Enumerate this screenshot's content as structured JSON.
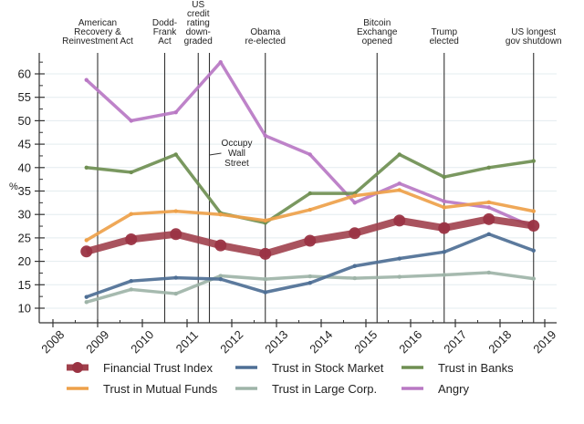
{
  "chart_data": {
    "type": "line",
    "title": "",
    "xlabel": "",
    "ylabel": "%",
    "xlim": [
      2007.8,
      2019.3
    ],
    "ylim": [
      8,
      64
    ],
    "x_ticks": [
      2008,
      2009,
      2010,
      2011,
      2012,
      2013,
      2014,
      2015,
      2016,
      2017,
      2018,
      2019
    ],
    "x_tick_labels": [
      "2008",
      "2009",
      "2010",
      "2011",
      "2012",
      "2013",
      "2014",
      "2015",
      "2016",
      "2017",
      "2018",
      "2019"
    ],
    "y_ticks": [
      10,
      15,
      20,
      25,
      30,
      35,
      40,
      45,
      50,
      55,
      60
    ],
    "y_tick_labels": [
      "10",
      "15",
      "20",
      "25",
      "30",
      "35",
      "40",
      "45",
      "50",
      "55",
      "60"
    ],
    "grid": "horizontal",
    "x": [
      2008.75,
      2009.75,
      2010.75,
      2011.75,
      2012.75,
      2013.75,
      2014.75,
      2015.75,
      2016.75,
      2017.75,
      2018.75
    ],
    "series": [
      {
        "name": "Angry",
        "color": "#b978c4",
        "values": [
          58.7,
          50.0,
          51.8,
          62.5,
          46.8,
          42.8,
          32.5,
          36.6,
          32.8,
          31.5,
          27.3
        ]
      },
      {
        "name": "Trust in Banks",
        "color": "#6f8f52",
        "values": [
          40.0,
          39.0,
          42.8,
          30.3,
          28.2,
          34.5,
          34.5,
          42.8,
          38.0,
          40.0,
          41.4
        ]
      },
      {
        "name": "Trust in Mutual Funds",
        "color": "#eea14a",
        "values": [
          24.5,
          30.1,
          30.7,
          30.0,
          28.7,
          31.0,
          34.0,
          35.2,
          31.5,
          32.6,
          30.7
        ]
      },
      {
        "name": "Trust in Large Corp.",
        "color": "#9eb4a8",
        "values": [
          11.3,
          14.0,
          13.1,
          16.9,
          16.2,
          16.8,
          16.4,
          16.7,
          17.1,
          17.6,
          16.3
        ]
      },
      {
        "name": "Trust in Stock Market",
        "color": "#4e6f95",
        "values": [
          12.4,
          15.8,
          16.5,
          16.2,
          13.4,
          15.4,
          19.0,
          20.6,
          22.0,
          25.8,
          22.3
        ]
      },
      {
        "name": "Financial Trust Index",
        "color": "#a0404c",
        "markers": true,
        "values": [
          22.1,
          24.7,
          25.8,
          23.4,
          21.6,
          24.4,
          26.0,
          28.7,
          27.1,
          29.0,
          27.6
        ]
      }
    ],
    "annotations": [
      {
        "x": 2009.0,
        "label": [
          "American",
          "Recovery &",
          "Reinvestment Act"
        ]
      },
      {
        "x": 2010.5,
        "label": [
          "Dodd-",
          "Frank",
          "Act"
        ]
      },
      {
        "x": 2011.25,
        "label": [
          "US",
          "credit",
          "rating",
          "down-",
          "graded"
        ]
      },
      {
        "x": 2011.5,
        "label": [
          "Occupy",
          "Wall",
          "Street"
        ],
        "inside": true
      },
      {
        "x": 2012.75,
        "label": [
          "Obama",
          "re-elected"
        ]
      },
      {
        "x": 2015.25,
        "label": [
          "Bitcoin",
          "Exchange",
          "opened"
        ]
      },
      {
        "x": 2016.75,
        "label": [
          "Trump",
          "elected"
        ]
      },
      {
        "x": 2018.75,
        "label": [
          "US longest",
          "gov shutdown"
        ]
      }
    ],
    "legend": {
      "placement": "bottom",
      "entries": [
        {
          "name": "Financial Trust Index",
          "color": "#a0404c",
          "marker": true
        },
        {
          "name": "Trust in Stock Market",
          "color": "#4e6f95"
        },
        {
          "name": "Trust in Banks",
          "color": "#6f8f52"
        },
        {
          "name": "Trust in Mutual Funds",
          "color": "#eea14a"
        },
        {
          "name": "Trust in Large Corp.",
          "color": "#9eb4a8"
        },
        {
          "name": "Angry",
          "color": "#b978c4"
        }
      ]
    }
  }
}
